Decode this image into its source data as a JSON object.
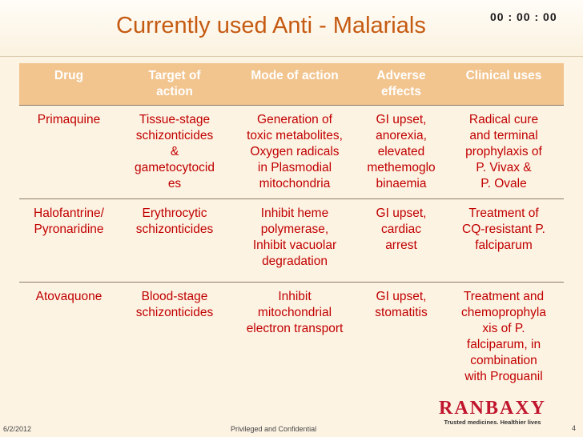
{
  "slide": {
    "title": "Currently used Anti - Malarials",
    "timer": "00 : 00 : 00"
  },
  "table": {
    "headers": [
      "Drug",
      "Target of\naction",
      "Mode of action",
      "Adverse\neffects",
      "Clinical uses"
    ],
    "rows": [
      [
        "Primaquine",
        "Tissue-stage\nschizonticides\n&\ngametocytocid\nes",
        "Generation of\ntoxic metabolites,\nOxygen radicals\nin Plasmodial\nmitochondria",
        "GI upset,\nanorexia,\nelevated\nmethemoglo\nbinaemia",
        "Radical cure\nand terminal\nprophylaxis of\nP. Vivax &\nP. Ovale"
      ],
      [
        "Halofantrine/\nPyronaridine",
        "Erythrocytic\nschizonticides",
        "Inhibit heme\npolymerase,\nInhibit vacuolar\ndegradation",
        "GI upset,\ncardiac\narrest",
        "Treatment of\nCQ-resistant P.\nfalciparum"
      ],
      [
        "Atovaquone",
        "Blood-stage\nschizonticides",
        "Inhibit\nmitochondrial\nelectron transport",
        "GI upset,\nstomatitis",
        "Treatment and\nchemoprophyla\nxis of P.\nfalciparum, in\ncombination\nwith Proguanil"
      ]
    ]
  },
  "footer": {
    "date": "6/2/2012",
    "confidential": "Privileged and Confidential",
    "page": "4"
  },
  "logo": {
    "name": "RANBAXY",
    "tagline": "Trusted medicines. Healthier lives"
  },
  "colors": {
    "title": "#c55a11",
    "header_bg": "#f2c48e",
    "body_text": "#c00000",
    "background": "#fdf3e3"
  }
}
